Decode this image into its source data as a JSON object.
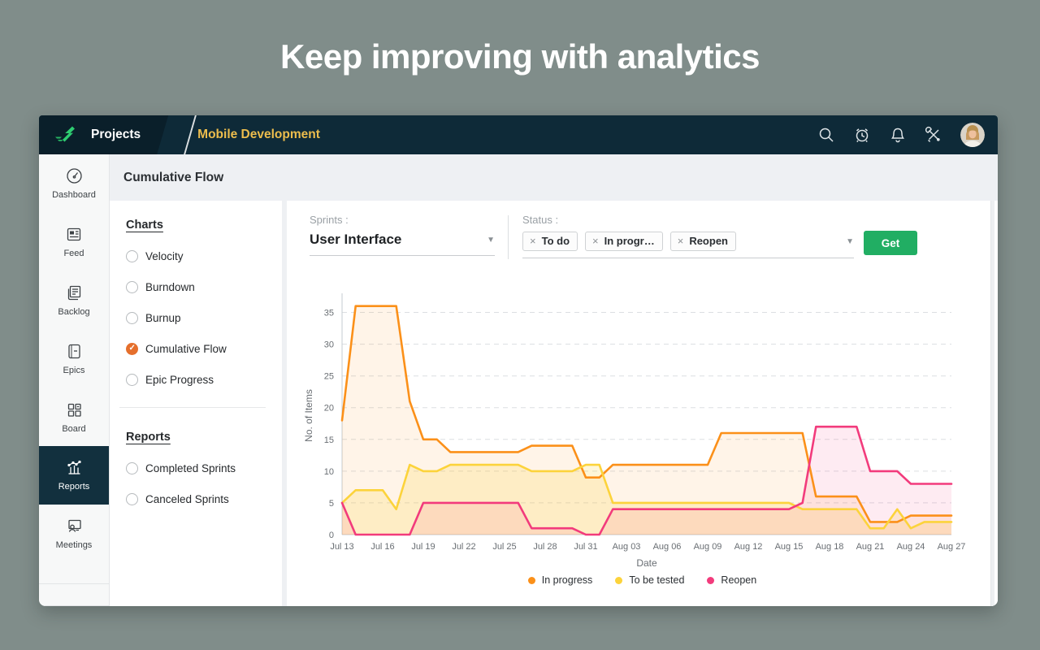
{
  "page": {
    "headline": "Keep improving with analytics"
  },
  "nav": {
    "projects_label": "Projects",
    "project_name": "Mobile Development",
    "icons": [
      "search-icon",
      "alarm-clock-icon",
      "bell-icon",
      "tools-icon",
      "avatar"
    ]
  },
  "sidebar": {
    "items": [
      {
        "icon": "dashboard-icon",
        "label": "Dashboard",
        "active": false
      },
      {
        "icon": "feed-icon",
        "label": "Feed",
        "active": false
      },
      {
        "icon": "backlog-icon",
        "label": "Backlog",
        "active": false
      },
      {
        "icon": "epics-icon",
        "label": "Epics",
        "active": false
      },
      {
        "icon": "board-icon",
        "label": "Board",
        "active": false
      },
      {
        "icon": "reports-icon",
        "label": "Reports",
        "active": true
      },
      {
        "icon": "meetings-icon",
        "label": "Meetings",
        "active": false
      }
    ]
  },
  "page_title": "Cumulative Flow",
  "charts_panel": {
    "charts_heading": "Charts",
    "chart_options": [
      {
        "label": "Velocity",
        "selected": false
      },
      {
        "label": "Burndown",
        "selected": false
      },
      {
        "label": "Burnup",
        "selected": false
      },
      {
        "label": "Cumulative Flow",
        "selected": true
      },
      {
        "label": "Epic Progress",
        "selected": false
      }
    ],
    "reports_heading": "Reports",
    "report_options": [
      {
        "label": "Completed Sprints",
        "selected": false
      },
      {
        "label": "Canceled Sprints",
        "selected": false
      }
    ]
  },
  "filters": {
    "sprints_label": "Sprints :",
    "sprint_value": "User Interface",
    "status_label": "Status :",
    "status_chips": [
      "To do",
      "In progr…",
      "Reopen"
    ],
    "get_button": "Get"
  },
  "chart_data": {
    "type": "area",
    "title": "",
    "xlabel": "Date",
    "ylabel": "No. of Items",
    "ylim": [
      0,
      37.5
    ],
    "yticks": [
      0,
      5,
      10,
      15,
      20,
      25,
      30,
      35
    ],
    "grid": "dashed horizontal",
    "legend_position": "bottom",
    "x": [
      "Jul 13",
      "Jul 14",
      "Jul 15",
      "Jul 16",
      "Jul 17",
      "Jul 18",
      "Jul 19",
      "Jul 20",
      "Jul 21",
      "Jul 22",
      "Jul 23",
      "Jul 24",
      "Jul 25",
      "Jul 26",
      "Jul 27",
      "Jul 28",
      "Jul 29",
      "Jul 30",
      "Jul 31",
      "Aug 01",
      "Aug 02",
      "Aug 03",
      "Aug 04",
      "Aug 05",
      "Aug 06",
      "Aug 07",
      "Aug 08",
      "Aug 09",
      "Aug 10",
      "Aug 11",
      "Aug 12",
      "Aug 13",
      "Aug 14",
      "Aug 15",
      "Aug 16",
      "Aug 17",
      "Aug 18",
      "Aug 19",
      "Aug 20",
      "Aug 21",
      "Aug 22",
      "Aug 23",
      "Aug 24",
      "Aug 25",
      "Aug 26",
      "Aug 27"
    ],
    "xtick_every": 3,
    "series": [
      {
        "name": "In progress",
        "color": "#FB9019",
        "fill": "rgba(251,144,25,0.10)",
        "values": [
          18,
          36,
          36,
          36,
          36,
          21,
          15,
          15,
          13,
          13,
          13,
          13,
          13,
          13,
          14,
          14,
          14,
          14,
          9,
          9,
          11,
          11,
          11,
          11,
          11,
          11,
          11,
          11,
          16,
          16,
          16,
          16,
          16,
          16,
          16,
          6,
          6,
          6,
          6,
          2,
          2,
          2,
          3,
          3,
          3,
          3
        ]
      },
      {
        "name": "To be tested",
        "color": "#FCD33B",
        "fill": "rgba(252,211,59,0.20)",
        "values": [
          5,
          7,
          7,
          7,
          4,
          11,
          10,
          10,
          11,
          11,
          11,
          11,
          11,
          11,
          10,
          10,
          10,
          10,
          11,
          11,
          5,
          5,
          5,
          5,
          5,
          5,
          5,
          5,
          5,
          5,
          5,
          5,
          5,
          5,
          4,
          4,
          4,
          4,
          4,
          1,
          1,
          4,
          1,
          2,
          2,
          2
        ]
      },
      {
        "name": "Reopen",
        "color": "#F23B7C",
        "fill": "rgba(242,59,124,0.10)",
        "values": [
          5,
          0,
          0,
          0,
          0,
          0,
          5,
          5,
          5,
          5,
          5,
          5,
          5,
          5,
          1,
          1,
          1,
          1,
          0,
          0,
          4,
          4,
          4,
          4,
          4,
          4,
          4,
          4,
          4,
          4,
          4,
          4,
          4,
          4,
          5,
          17,
          17,
          17,
          17,
          10,
          10,
          10,
          8,
          8,
          8,
          8
        ]
      }
    ]
  }
}
